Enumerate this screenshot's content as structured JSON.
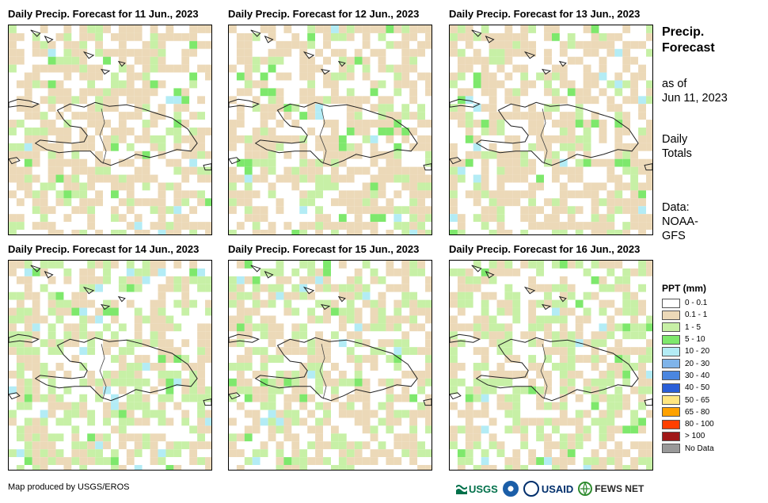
{
  "panels": [
    {
      "title": "Daily Precip. Forecast for 11 Jun., 2023",
      "seed": 11
    },
    {
      "title": "Daily Precip. Forecast for 12 Jun., 2023",
      "seed": 12
    },
    {
      "title": "Daily Precip. Forecast for 13 Jun., 2023",
      "seed": 13
    },
    {
      "title": "Daily Precip. Forecast for 14 Jun., 2023",
      "seed": 14
    },
    {
      "title": "Daily Precip. Forecast for 15 Jun., 2023",
      "seed": 15
    },
    {
      "title": "Daily Precip. Forecast for 16 Jun., 2023",
      "seed": 16
    }
  ],
  "side": {
    "title": "Precip.\nForecast",
    "as_of": "as of\nJun 11, 2023",
    "daily": "Daily\nTotals",
    "data": "Data:\nNOAA-\nGFS"
  },
  "legend": {
    "title": "PPT (mm)",
    "items": [
      {
        "label": "0 - 0.1",
        "color": "#ffffff"
      },
      {
        "label": "0.1 - 1",
        "color": "#ecd9b8"
      },
      {
        "label": "1 - 5",
        "color": "#c7f0a6"
      },
      {
        "label": "5 - 10",
        "color": "#7ee86c"
      },
      {
        "label": "10 - 20",
        "color": "#b3ecf5"
      },
      {
        "label": "20 - 30",
        "color": "#7fb4ea"
      },
      {
        "label": "30 - 40",
        "color": "#4a86e0"
      },
      {
        "label": "40 - 50",
        "color": "#2a5fd8"
      },
      {
        "label": "50 - 65",
        "color": "#ffe680"
      },
      {
        "label": "65 - 80",
        "color": "#ffa200"
      },
      {
        "label": "80 - 100",
        "color": "#ff4000"
      },
      {
        "label": "> 100",
        "color": "#a01818"
      },
      {
        "label": "No Data",
        "color": "#999999"
      }
    ]
  },
  "credit": "Map produced by USGS/EROS",
  "logos": [
    {
      "name": "usgs",
      "text": "USGS",
      "color": "#00704a"
    },
    {
      "name": "noaa",
      "text": "",
      "color": "#1b5ea8"
    },
    {
      "name": "usaid",
      "text": "USAID",
      "color": "#c8102e"
    },
    {
      "name": "fews",
      "text": "FEWS NET",
      "color": "#2a2a2a"
    }
  ]
}
